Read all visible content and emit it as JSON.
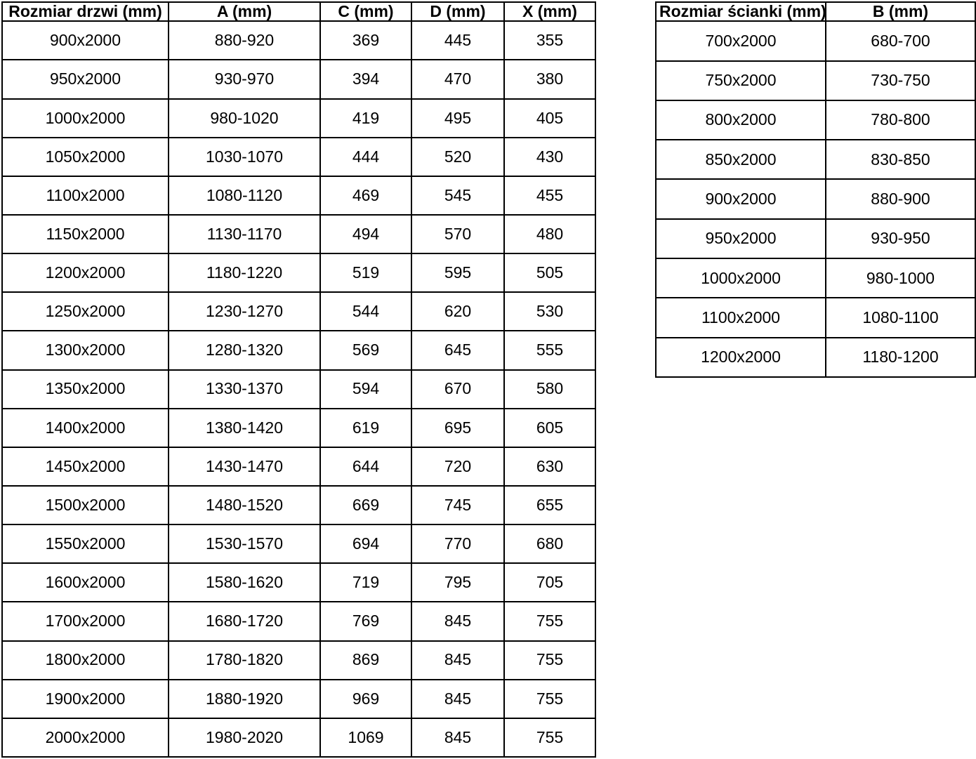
{
  "colors": {
    "background": "#ffffff",
    "grid_border": "#000000",
    "text": "#000000"
  },
  "doors_table": {
    "headers": [
      "Rozmiar drzwi (mm)",
      "A (mm)",
      "C (mm)",
      "D (mm)",
      "X (mm)"
    ],
    "rows": [
      [
        "900x2000",
        "880-920",
        "369",
        "445",
        "355"
      ],
      [
        "950x2000",
        "930-970",
        "394",
        "470",
        "380"
      ],
      [
        "1000x2000",
        "980-1020",
        "419",
        "495",
        "405"
      ],
      [
        "1050x2000",
        "1030-1070",
        "444",
        "520",
        "430"
      ],
      [
        "1100x2000",
        "1080-1120",
        "469",
        "545",
        "455"
      ],
      [
        "1150x2000",
        "1130-1170",
        "494",
        "570",
        "480"
      ],
      [
        "1200x2000",
        "1180-1220",
        "519",
        "595",
        "505"
      ],
      [
        "1250x2000",
        "1230-1270",
        "544",
        "620",
        "530"
      ],
      [
        "1300x2000",
        "1280-1320",
        "569",
        "645",
        "555"
      ],
      [
        "1350x2000",
        "1330-1370",
        "594",
        "670",
        "580"
      ],
      [
        "1400x2000",
        "1380-1420",
        "619",
        "695",
        "605"
      ],
      [
        "1450x2000",
        "1430-1470",
        "644",
        "720",
        "630"
      ],
      [
        "1500x2000",
        "1480-1520",
        "669",
        "745",
        "655"
      ],
      [
        "1550x2000",
        "1530-1570",
        "694",
        "770",
        "680"
      ],
      [
        "1600x2000",
        "1580-1620",
        "719",
        "795",
        "705"
      ],
      [
        "1700x2000",
        "1680-1720",
        "769",
        "845",
        "755"
      ],
      [
        "1800x2000",
        "1780-1820",
        "869",
        "845",
        "755"
      ],
      [
        "1900x2000",
        "1880-1920",
        "969",
        "845",
        "755"
      ],
      [
        "2000x2000",
        "1980-2020",
        "1069",
        "845",
        "755"
      ]
    ]
  },
  "walls_table": {
    "headers": [
      "Rozmiar ścianki (mm)",
      "B (mm)"
    ],
    "rows": [
      [
        "700x2000",
        "680-700"
      ],
      [
        "750x2000",
        "730-750"
      ],
      [
        "800x2000",
        "780-800"
      ],
      [
        "850x2000",
        "830-850"
      ],
      [
        "900x2000",
        "880-900"
      ],
      [
        "950x2000",
        "930-950"
      ],
      [
        "1000x2000",
        "980-1000"
      ],
      [
        "1100x2000",
        "1080-1100"
      ],
      [
        "1200x2000",
        "1180-1200"
      ]
    ]
  }
}
